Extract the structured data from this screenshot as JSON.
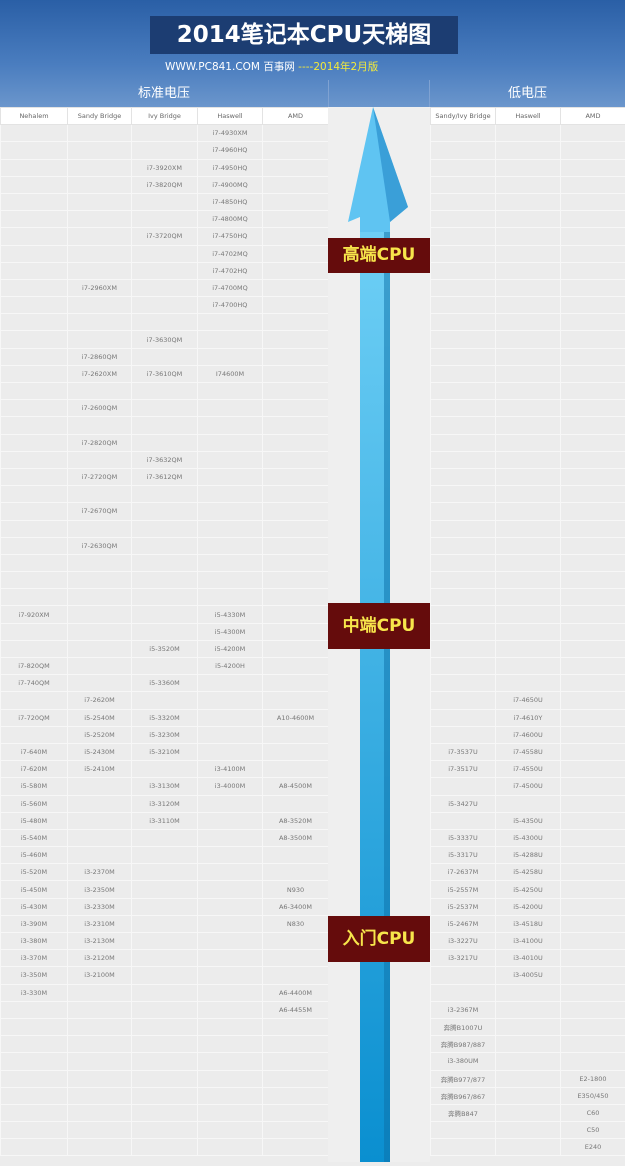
{
  "header": {
    "title": "2014笔记本CPU天梯图",
    "site": "WWW.PC841.COM 百事网",
    "edition": "----2014年2月版",
    "section_standard": "标准电压",
    "section_low": "低电压"
  },
  "colors": {
    "header_blue": "#2a5fa6",
    "title_bg": "#1c3d72",
    "label_bg": "#650c0c",
    "label_text": "#f7e54b",
    "arrow": "#3fb0e6"
  },
  "columns_left": [
    "Nehalem",
    "Sandy Bridge",
    "Ivy Bridge",
    "Haswell",
    "AMD"
  ],
  "columns_right": [
    "Sandy/Ivy Bridge",
    "Haswell",
    "AMD"
  ],
  "tiers": {
    "high": "高端CPU",
    "mid": "中端CPU",
    "entry": "入门CPU"
  },
  "rows": [
    [
      "",
      "",
      "",
      "i7-4930XM",
      "",
      "",
      "",
      ""
    ],
    [
      "",
      "",
      "",
      "i7-4960HQ",
      "",
      "",
      "",
      ""
    ],
    [
      "",
      "",
      "i7-3920XM",
      "i7-4950HQ",
      "",
      "",
      "",
      ""
    ],
    [
      "",
      "",
      "i7-3820QM",
      "i7-4900MQ",
      "",
      "",
      "",
      ""
    ],
    [
      "",
      "",
      "",
      "i7-4850HQ",
      "",
      "",
      "",
      ""
    ],
    [
      "",
      "",
      "",
      "i7-4800MQ",
      "",
      "",
      "",
      ""
    ],
    [
      "",
      "",
      "i7-3720QM",
      "i7-4750HQ",
      "",
      "",
      "",
      ""
    ],
    [
      "",
      "",
      "",
      "i7-4702MQ",
      "",
      "",
      "",
      ""
    ],
    [
      "",
      "",
      "",
      "i7-4702HQ",
      "",
      "",
      "",
      ""
    ],
    [
      "",
      "i7-2960XM",
      "",
      "i7-4700MQ",
      "",
      "",
      "",
      ""
    ],
    [
      "",
      "",
      "",
      "i7-4700HQ",
      "",
      "",
      "",
      ""
    ],
    [
      "",
      "",
      "",
      "",
      "",
      "",
      "",
      ""
    ],
    [
      "",
      "",
      "i7-3630QM",
      "",
      "",
      "",
      "",
      ""
    ],
    [
      "",
      "i7-2860QM",
      "",
      "",
      "",
      "",
      "",
      ""
    ],
    [
      "",
      "i7-2620XM",
      "i7-3610QM",
      "I74600M",
      "",
      "",
      "",
      ""
    ],
    [
      "",
      "",
      "",
      "",
      "",
      "",
      "",
      ""
    ],
    [
      "",
      "i7-2600QM",
      "",
      "",
      "",
      "",
      "",
      ""
    ],
    [
      "",
      "",
      "",
      "",
      "",
      "",
      "",
      ""
    ],
    [
      "",
      "i7-2820QM",
      "",
      "",
      "",
      "",
      "",
      ""
    ],
    [
      "",
      "",
      "i7-3632QM",
      "",
      "",
      "",
      "",
      ""
    ],
    [
      "",
      "i7-2720QM",
      "i7-3612QM",
      "",
      "",
      "",
      "",
      ""
    ],
    [
      "",
      "",
      "",
      "",
      "",
      "",
      "",
      ""
    ],
    [
      "",
      "i7-2670QM",
      "",
      "",
      "",
      "",
      "",
      ""
    ],
    [
      "",
      "",
      "",
      "",
      "",
      "",
      "",
      ""
    ],
    [
      "",
      "i7-2630QM",
      "",
      "",
      "",
      "",
      "",
      ""
    ],
    [
      "",
      "",
      "",
      "",
      "",
      "",
      "",
      ""
    ],
    [
      "",
      "",
      "",
      "",
      "",
      "",
      "",
      ""
    ],
    [
      "",
      "",
      "",
      "",
      "",
      "",
      "",
      ""
    ],
    [
      "i7-920XM",
      "",
      "",
      "i5-4330M",
      "",
      "",
      "",
      ""
    ],
    [
      "",
      "",
      "",
      "i5-4300M",
      "",
      "",
      "",
      ""
    ],
    [
      "",
      "",
      "i5-3520M",
      "i5-4200M",
      "",
      "",
      "",
      ""
    ],
    [
      "i7-820QM",
      "",
      "",
      "i5-4200H",
      "",
      "",
      "",
      ""
    ],
    [
      "i7-740QM",
      "",
      "i5-3360M",
      "",
      "",
      "",
      "",
      ""
    ],
    [
      "",
      "i7-2620M",
      "",
      "",
      "",
      "",
      "i7-4650U",
      ""
    ],
    [
      "i7-720QM",
      "i5-2540M",
      "i5-3320M",
      "",
      "A10-4600M",
      "",
      "i7-4610Y",
      ""
    ],
    [
      "",
      "i5-2520M",
      "i5-3230M",
      "",
      "",
      "",
      "i7-4600U",
      ""
    ],
    [
      "i7-640M",
      "i5-2430M",
      "i5-3210M",
      "",
      "",
      "i7-3537U",
      "i7-4558U",
      ""
    ],
    [
      "i7-620M",
      "i5-2410M",
      "",
      "i3-4100M",
      "",
      "i7-3517U",
      "i7-4550U",
      ""
    ],
    [
      "i5-580M",
      "",
      "i3-3130M",
      "i3-4000M",
      "A8-4500M",
      "",
      "i7-4500U",
      ""
    ],
    [
      "i5-560M",
      "",
      "i3-3120M",
      "",
      "",
      "i5-3427U",
      "",
      ""
    ],
    [
      "i5-480M",
      "",
      "i3-3110M",
      "",
      "A8-3520M",
      "",
      "i5-4350U",
      ""
    ],
    [
      "i5-540M",
      "",
      "",
      "",
      "A8-3500M",
      "i5-3337U",
      "i5-4300U",
      ""
    ],
    [
      "i5-460M",
      "",
      "",
      "",
      "",
      "i5-3317U",
      "i5-4288U",
      ""
    ],
    [
      "i5-520M",
      "i3-2370M",
      "",
      "",
      "",
      "i7-2637M",
      "i5-4258U",
      ""
    ],
    [
      "i5-450M",
      "i3-2350M",
      "",
      "",
      "N930",
      "i5-2557M",
      "i5-4250U",
      ""
    ],
    [
      "i5-430M",
      "i3-2330M",
      "",
      "",
      "A6-3400M",
      "i5-2537M",
      "i5-4200U",
      ""
    ],
    [
      "i3-390M",
      "i3-2310M",
      "",
      "",
      "N830",
      "i5-2467M",
      "i3-4518U",
      ""
    ],
    [
      "i3-380M",
      "i3-2130M",
      "",
      "",
      "",
      "i3-3227U",
      "i3-4100U",
      ""
    ],
    [
      "i3-370M",
      "i3-2120M",
      "",
      "",
      "",
      "i3-3217U",
      "i3-4010U",
      ""
    ],
    [
      "i3-350M",
      "i3-2100M",
      "",
      "",
      "",
      "",
      "i3-4005U",
      ""
    ],
    [
      "i3-330M",
      "",
      "",
      "",
      "A6-4400M",
      "",
      "",
      ""
    ],
    [
      "",
      "",
      "",
      "",
      "A6-4455M",
      "i3-2367M",
      "",
      ""
    ],
    [
      "",
      "",
      "",
      "",
      "",
      "奔腾B1007U",
      "",
      ""
    ],
    [
      "",
      "",
      "",
      "",
      "",
      "奔腾B987/887",
      "",
      ""
    ],
    [
      "",
      "",
      "",
      "",
      "",
      "i3-380UM",
      "",
      ""
    ],
    [
      "",
      "",
      "",
      "",
      "",
      "奔腾B977/877",
      "",
      "E2-1800"
    ],
    [
      "",
      "",
      "",
      "",
      "",
      "奔腾B967/867",
      "",
      "E350/450"
    ],
    [
      "",
      "",
      "",
      "",
      "",
      "奔腾B847",
      "",
      "C60"
    ],
    [
      "",
      "",
      "",
      "",
      "",
      "",
      "",
      "C50"
    ],
    [
      "",
      "",
      "",
      "",
      "",
      "",
      "",
      "E240"
    ]
  ]
}
